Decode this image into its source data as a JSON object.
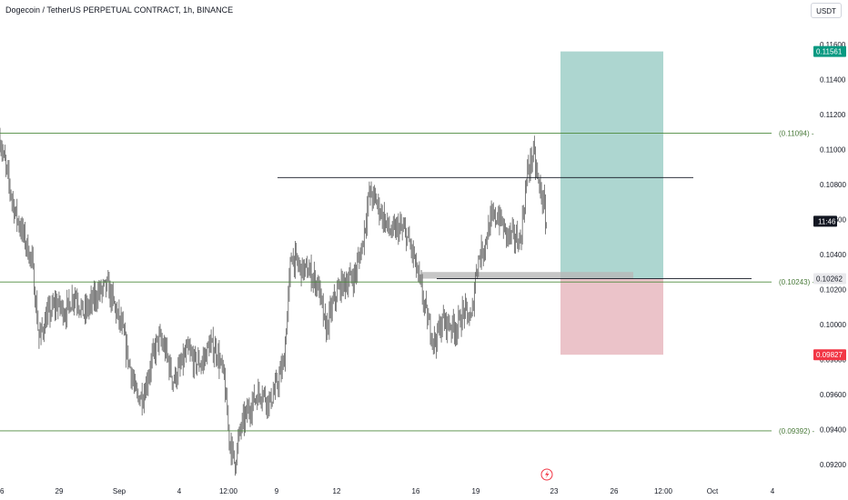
{
  "header": {
    "title": "Dogecoin / TetherUS PERPETUAL CONTRACT, 1h, BINANCE",
    "currency_button": "USDT"
  },
  "colors": {
    "candle": "#6e6e6e",
    "level_line": "#4c8a3c",
    "level_label": "#4a7a3a",
    "profit_zone": "#9fcfc8",
    "loss_zone": "#e7b8bf",
    "target_tag": "#089981",
    "stop_tag": "#f23645",
    "time_tag": "#131722",
    "entry_tag": "#e9e9ec",
    "resistance_line": "#131722",
    "demand_zone": "#b8b8b8"
  },
  "chart_data": {
    "type": "candlestick",
    "symbol": "Dogecoin / TetherUS PERPETUAL CONTRACT",
    "interval": "1h",
    "exchange": "BINANCE",
    "ylim": [
      0.0909,
      0.1172
    ],
    "y_ticks": [
      0.092,
      0.094,
      0.096,
      0.098,
      0.1,
      0.102,
      0.104,
      0.106,
      0.108,
      0.11,
      0.112,
      0.114,
      0.116
    ],
    "y_tick_labels": [
      "0.09200",
      "0.09400",
      "0.09600",
      "0.09800",
      "0.10000",
      "0.10200",
      "0.10400",
      "0.10600",
      "0.10800",
      "0.11000",
      "0.11200",
      "0.11400",
      "0.11600"
    ],
    "x_ticks": [
      {
        "label": "6",
        "t": 0
      },
      {
        "label": "29",
        "t": 65
      },
      {
        "label": "Sep",
        "t": 131
      },
      {
        "label": "4",
        "t": 197
      },
      {
        "label": "12:00",
        "t": 251
      },
      {
        "label": "9",
        "t": 304
      },
      {
        "label": "12",
        "t": 370
      },
      {
        "label": "16",
        "t": 457
      },
      {
        "label": "19",
        "t": 523
      },
      {
        "label": "23",
        "t": 609
      },
      {
        "label": "26",
        "t": 675
      },
      {
        "label": "12:00",
        "t": 729
      },
      {
        "label": "Oct",
        "t": 783
      },
      {
        "label": "4",
        "t": 849
      }
    ],
    "price_path": [
      [
        0,
        0.1106
      ],
      [
        8,
        0.1085
      ],
      [
        16,
        0.1065
      ],
      [
        25,
        0.1052
      ],
      [
        35,
        0.1036
      ],
      [
        43,
        0.0992
      ],
      [
        52,
        0.1005
      ],
      [
        62,
        0.1012
      ],
      [
        72,
        0.1007
      ],
      [
        82,
        0.1018
      ],
      [
        92,
        0.1006
      ],
      [
        100,
        0.1012
      ],
      [
        108,
        0.1018
      ],
      [
        118,
        0.1022
      ],
      [
        126,
        0.101
      ],
      [
        134,
        0.0998
      ],
      [
        142,
        0.0978
      ],
      [
        150,
        0.0958
      ],
      [
        158,
        0.096
      ],
      [
        166,
        0.0978
      ],
      [
        174,
        0.0992
      ],
      [
        182,
        0.0985
      ],
      [
        190,
        0.0968
      ],
      [
        198,
        0.0975
      ],
      [
        206,
        0.0985
      ],
      [
        214,
        0.0978
      ],
      [
        222,
        0.0978
      ],
      [
        230,
        0.0988
      ],
      [
        238,
        0.0985
      ],
      [
        246,
        0.097
      ],
      [
        252,
        0.0935
      ],
      [
        258,
        0.092
      ],
      [
        264,
        0.094
      ],
      [
        272,
        0.095
      ],
      [
        280,
        0.0958
      ],
      [
        288,
        0.0962
      ],
      [
        296,
        0.0955
      ],
      [
        304,
        0.0965
      ],
      [
        312,
        0.0978
      ],
      [
        320,
        0.104
      ],
      [
        330,
        0.1032
      ],
      [
        340,
        0.103
      ],
      [
        350,
        0.1022
      ],
      [
        358,
        0.0996
      ],
      [
        366,
        0.1012
      ],
      [
        374,
        0.1022
      ],
      [
        382,
        0.1025
      ],
      [
        390,
        0.1028
      ],
      [
        398,
        0.1045
      ],
      [
        406,
        0.1075
      ],
      [
        414,
        0.107
      ],
      [
        422,
        0.106
      ],
      [
        430,
        0.1052
      ],
      [
        438,
        0.1055
      ],
      [
        446,
        0.1052
      ],
      [
        454,
        0.104
      ],
      [
        462,
        0.1022
      ],
      [
        470,
        0.1002
      ],
      [
        478,
        0.099
      ],
      [
        486,
        0.1002
      ],
      [
        494,
        0.1
      ],
      [
        502,
        0.0998
      ],
      [
        510,
        0.1008
      ],
      [
        518,
        0.1002
      ],
      [
        524,
        0.1035
      ],
      [
        532,
        0.1045
      ],
      [
        540,
        0.106
      ],
      [
        548,
        0.1062
      ],
      [
        556,
        0.1052
      ],
      [
        564,
        0.105
      ],
      [
        572,
        0.1048
      ],
      [
        580,
        0.1088
      ],
      [
        586,
        0.1098
      ],
      [
        592,
        0.108
      ],
      [
        597,
        0.107
      ],
      [
        601,
        0.1055
      ]
    ],
    "levels": [
      {
        "name": "upper-level",
        "value": 0.11094,
        "label": "(0.11094)"
      },
      {
        "name": "middle-level",
        "value": 0.10243,
        "label": "(0.10243)"
      },
      {
        "name": "lower-level",
        "value": 0.09392,
        "label": "(0.09392)"
      }
    ],
    "resistance_lines": [
      {
        "name": "upper-resistance-line",
        "value": 0.1084,
        "t_start": 305,
        "t_end": 762
      },
      {
        "name": "entry-line",
        "value": 0.10262,
        "t_start": 480,
        "t_end": 826
      }
    ],
    "demand_zone": {
      "top": 0.103,
      "bottom": 0.10262,
      "t_start": 464,
      "t_end": 696
    },
    "position": {
      "entry": 0.10262,
      "target": 0.11561,
      "stop": 0.09827,
      "t_start": 616,
      "t_end": 729
    },
    "price_tags": {
      "target": "0.11561",
      "entry": "0.10262",
      "stop": "0.09827",
      "time": "11:46",
      "time_value": 0.1059
    },
    "alert_icon": {
      "t": 601
    }
  }
}
